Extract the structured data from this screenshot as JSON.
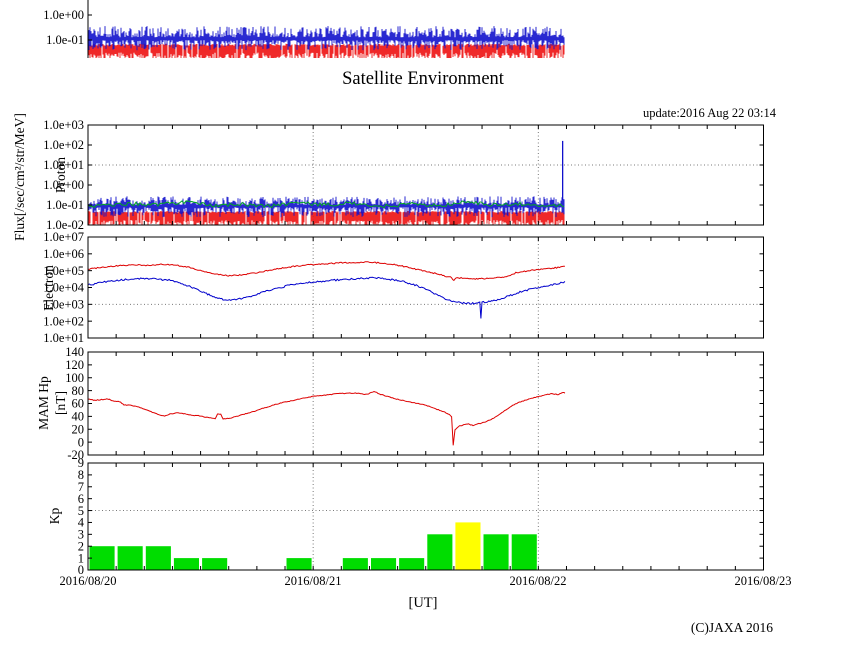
{
  "title": "Satellite Environment",
  "update_label": "update:2016 Aug 22 03:14",
  "copyright": "(C)JAXA 2016",
  "ylabel_flux": "Flux[/sec/cm²/str/MeV]",
  "xaxis": {
    "label": "[UT]",
    "tick_labels": [
      "2016/08/20",
      "2016/08/21",
      "2016/08/22",
      "2016/08/23"
    ],
    "span_days": 3,
    "minor_tick_hours": 3,
    "gridline_days": [
      1,
      2
    ],
    "data_end_days": 2.118
  },
  "chart_data": [
    {
      "id": "partial_top",
      "type": "line",
      "note": "partially cropped flux panel at top of image",
      "yscale": "log",
      "yticks": [
        {
          "v": 1.0,
          "label": "1.0e+00"
        },
        {
          "v": 0.1,
          "label": "1.0e-01"
        }
      ],
      "series": [
        {
          "name": "flux-red-noise",
          "color": "#ee1111",
          "style": "spikes_down",
          "log_top": -1.15,
          "log_bottom": [
            -1.85,
            -1.5
          ],
          "t_range": [
            0,
            2.118
          ]
        },
        {
          "name": "flux-blue-noise",
          "color": "#1111cc",
          "style": "noise_band",
          "log_center": -0.95,
          "log_up": 0.45,
          "log_down": 0.4,
          "t_range": [
            0,
            2.118
          ]
        }
      ]
    },
    {
      "id": "proton",
      "panel_label": "Proton",
      "type": "line",
      "yscale": "log",
      "ylim": [
        0.01,
        1000
      ],
      "guide_value": 10,
      "yticks": [
        {
          "v": 1000,
          "label": "1.0e+03"
        },
        {
          "v": 100,
          "label": "1.0e+02"
        },
        {
          "v": 10,
          "label": "1.0e+01"
        },
        {
          "v": 1,
          "label": "1.0e+00"
        },
        {
          "v": 0.1,
          "label": "1.0e-01"
        },
        {
          "v": 0.01,
          "label": "1.0e-02"
        }
      ],
      "series": [
        {
          "name": "proton-red-channel",
          "color": "#ee1111",
          "style": "spikes_down",
          "log_top": -1.3,
          "log_bottom": [
            -2.1,
            -1.75
          ],
          "t_range": [
            0,
            2.118
          ]
        },
        {
          "name": "proton-blue-channel",
          "color": "#1111cc",
          "style": "noise_band",
          "log_center": -1.05,
          "log_up": 0.42,
          "log_down": 0.5,
          "t_range": [
            0,
            2.118
          ],
          "spike": {
            "t": 2.108,
            "value": 160
          }
        },
        {
          "name": "proton-green-channel",
          "color": "#00a820",
          "style": "noisy_line",
          "log_center": -0.97,
          "log_jitter": 0.09,
          "t_range": [
            0,
            2.118
          ]
        }
      ]
    },
    {
      "id": "electron",
      "panel_label": "Electron",
      "type": "line",
      "yscale": "log",
      "ylim": [
        10,
        10000000
      ],
      "guide_value": 1000,
      "yticks": [
        {
          "v": 10000000,
          "label": "1.0e+07"
        },
        {
          "v": 1000000,
          "label": "1.0e+06"
        },
        {
          "v": 100000,
          "label": "1.0e+05"
        },
        {
          "v": 10000,
          "label": "1.0e+04"
        },
        {
          "v": 1000,
          "label": "1.0e+03"
        },
        {
          "v": 100,
          "label": "1.0e+02"
        },
        {
          "v": 10,
          "label": "1.0e+01"
        }
      ],
      "series": [
        {
          "name": "electron-red-channel",
          "color": "#dd0000",
          "jitter_log": 0.035,
          "points": [
            [
              0,
              120000
            ],
            [
              0.06,
              160000
            ],
            [
              0.12,
              190000
            ],
            [
              0.2,
              220000
            ],
            [
              0.27,
              210000
            ],
            [
              0.33,
              240000
            ],
            [
              0.38,
              220000
            ],
            [
              0.45,
              160000
            ],
            [
              0.5,
              100000
            ],
            [
              0.55,
              70000
            ],
            [
              0.6,
              55000
            ],
            [
              0.63,
              50000
            ],
            [
              0.68,
              55000
            ],
            [
              0.72,
              65000
            ],
            [
              0.78,
              90000
            ],
            [
              0.84,
              130000
            ],
            [
              0.9,
              170000
            ],
            [
              0.96,
              210000
            ],
            [
              1.02,
              240000
            ],
            [
              1.1,
              280000
            ],
            [
              1.18,
              310000
            ],
            [
              1.25,
              320000
            ],
            [
              1.3,
              290000
            ],
            [
              1.36,
              230000
            ],
            [
              1.42,
              160000
            ],
            [
              1.48,
              105000
            ],
            [
              1.54,
              70000
            ],
            [
              1.58,
              50000
            ],
            [
              1.61,
              40000
            ],
            [
              1.625,
              28000
            ],
            [
              1.64,
              38000
            ],
            [
              1.68,
              34000
            ],
            [
              1.72,
              33000
            ],
            [
              1.76,
              34000
            ],
            [
              1.8,
              36000
            ],
            [
              1.84,
              40000
            ],
            [
              1.87,
              50000
            ],
            [
              1.9,
              75000
            ],
            [
              1.95,
              95000
            ],
            [
              2.0,
              115000
            ],
            [
              2.05,
              135000
            ],
            [
              2.1,
              160000
            ],
            [
              2.118,
              180000
            ]
          ]
        },
        {
          "name": "electron-blue-channel",
          "color": "#0000cc",
          "jitter_log": 0.05,
          "points": [
            [
              0,
              14000
            ],
            [
              0.08,
              22000
            ],
            [
              0.16,
              29000
            ],
            [
              0.24,
              33000
            ],
            [
              0.3,
              32000
            ],
            [
              0.36,
              27000
            ],
            [
              0.42,
              17000
            ],
            [
              0.47,
              9000
            ],
            [
              0.52,
              4500
            ],
            [
              0.56,
              2800
            ],
            [
              0.6,
              2000
            ],
            [
              0.64,
              1900
            ],
            [
              0.68,
              2200
            ],
            [
              0.73,
              3200
            ],
            [
              0.78,
              5500
            ],
            [
              0.84,
              9000
            ],
            [
              0.9,
              14000
            ],
            [
              0.97,
              19000
            ],
            [
              1.05,
              24000
            ],
            [
              1.12,
              29000
            ],
            [
              1.2,
              34000
            ],
            [
              1.27,
              38000
            ],
            [
              1.32,
              34000
            ],
            [
              1.38,
              26000
            ],
            [
              1.44,
              16000
            ],
            [
              1.5,
              8000
            ],
            [
              1.55,
              3500
            ],
            [
              1.6,
              1800
            ],
            [
              1.64,
              1300
            ],
            [
              1.68,
              1200
            ],
            [
              1.72,
              1100
            ],
            [
              1.74,
              1300
            ],
            [
              1.745,
              150
            ],
            [
              1.75,
              1300
            ],
            [
              1.78,
              1500
            ],
            [
              1.82,
              1900
            ],
            [
              1.86,
              2800
            ],
            [
              1.9,
              4500
            ],
            [
              1.95,
              7000
            ],
            [
              2.0,
              10000
            ],
            [
              2.05,
              14000
            ],
            [
              2.1,
              19000
            ],
            [
              2.118,
              22000
            ]
          ]
        }
      ]
    },
    {
      "id": "mam",
      "panel_label": "MAM Hp",
      "panel_label2": "[nT]",
      "type": "line",
      "yscale": "linear",
      "ylim": [
        -20,
        140
      ],
      "yticks": [
        {
          "v": 140,
          "label": "140"
        },
        {
          "v": 120,
          "label": "120"
        },
        {
          "v": 100,
          "label": "100"
        },
        {
          "v": 80,
          "label": "80"
        },
        {
          "v": 60,
          "label": "60"
        },
        {
          "v": 40,
          "label": "40"
        },
        {
          "v": 20,
          "label": "20"
        },
        {
          "v": 0,
          "label": "0"
        },
        {
          "v": -20,
          "label": "-20"
        }
      ],
      "series": [
        {
          "name": "mam-hp",
          "color": "#dd0000",
          "jitter": 0.6,
          "points": [
            [
              0,
              67
            ],
            [
              0.03,
              65
            ],
            [
              0.06,
              66
            ],
            [
              0.09,
              67
            ],
            [
              0.11,
              64
            ],
            [
              0.14,
              63
            ],
            [
              0.16,
              58
            ],
            [
              0.19,
              57
            ],
            [
              0.22,
              55
            ],
            [
              0.25,
              51
            ],
            [
              0.28,
              47
            ],
            [
              0.31,
              43
            ],
            [
              0.34,
              41
            ],
            [
              0.37,
              44
            ],
            [
              0.4,
              46
            ],
            [
              0.43,
              44
            ],
            [
              0.46,
              42
            ],
            [
              0.49,
              41
            ],
            [
              0.52,
              39
            ],
            [
              0.55,
              37
            ],
            [
              0.565,
              36
            ],
            [
              0.575,
              44
            ],
            [
              0.59,
              43
            ],
            [
              0.6,
              36
            ],
            [
              0.63,
              37
            ],
            [
              0.66,
              40
            ],
            [
              0.7,
              44
            ],
            [
              0.74,
              48
            ],
            [
              0.78,
              53
            ],
            [
              0.82,
              57
            ],
            [
              0.86,
              61
            ],
            [
              0.9,
              64
            ],
            [
              0.95,
              68
            ],
            [
              1.0,
              71
            ],
            [
              1.05,
              73
            ],
            [
              1.1,
              75
            ],
            [
              1.15,
              76
            ],
            [
              1.2,
              76
            ],
            [
              1.24,
              74
            ],
            [
              1.27,
              79
            ],
            [
              1.3,
              74
            ],
            [
              1.33,
              71
            ],
            [
              1.37,
              67
            ],
            [
              1.41,
              64
            ],
            [
              1.45,
              61
            ],
            [
              1.49,
              58
            ],
            [
              1.52,
              55
            ],
            [
              1.55,
              51
            ],
            [
              1.58,
              47
            ],
            [
              1.6,
              44
            ],
            [
              1.615,
              40
            ],
            [
              1.622,
              -5
            ],
            [
              1.63,
              19
            ],
            [
              1.65,
              25
            ],
            [
              1.67,
              27
            ],
            [
              1.69,
              28
            ],
            [
              1.71,
              26
            ],
            [
              1.73,
              28
            ],
            [
              1.76,
              31
            ],
            [
              1.79,
              35
            ],
            [
              1.82,
              41
            ],
            [
              1.85,
              49
            ],
            [
              1.88,
              56
            ],
            [
              1.91,
              61
            ],
            [
              1.94,
              65
            ],
            [
              1.97,
              68
            ],
            [
              2.0,
              71
            ],
            [
              2.03,
              73
            ],
            [
              2.06,
              75
            ],
            [
              2.09,
              74
            ],
            [
              2.11,
              77
            ],
            [
              2.118,
              76
            ]
          ]
        }
      ]
    },
    {
      "id": "kp",
      "panel_label": "Kp",
      "type": "bar",
      "yscale": "linear",
      "ylim": [
        0,
        9
      ],
      "guide_value": 5,
      "bin_days": 0.125,
      "active_threshold": 4,
      "colors": {
        "quiet": "#00dd00",
        "active": "#ffff00"
      },
      "yticks": [
        {
          "v": 9,
          "label": "9"
        },
        {
          "v": 8,
          "label": "8"
        },
        {
          "v": 7,
          "label": "7"
        },
        {
          "v": 6,
          "label": "6"
        },
        {
          "v": 5,
          "label": "5"
        },
        {
          "v": 4,
          "label": "4"
        },
        {
          "v": 3,
          "label": "3"
        },
        {
          "v": 2,
          "label": "2"
        },
        {
          "v": 1,
          "label": "1"
        },
        {
          "v": 0,
          "label": "0"
        }
      ],
      "bars": [
        {
          "t": 0.0,
          "v": 2
        },
        {
          "t": 0.125,
          "v": 2
        },
        {
          "t": 0.25,
          "v": 2
        },
        {
          "t": 0.375,
          "v": 1
        },
        {
          "t": 0.5,
          "v": 1
        },
        {
          "t": 0.875,
          "v": 1
        },
        {
          "t": 1.125,
          "v": 1
        },
        {
          "t": 1.25,
          "v": 1
        },
        {
          "t": 1.375,
          "v": 1
        },
        {
          "t": 1.5,
          "v": 3
        },
        {
          "t": 1.625,
          "v": 4
        },
        {
          "t": 1.75,
          "v": 3
        },
        {
          "t": 1.875,
          "v": 3
        }
      ]
    }
  ]
}
